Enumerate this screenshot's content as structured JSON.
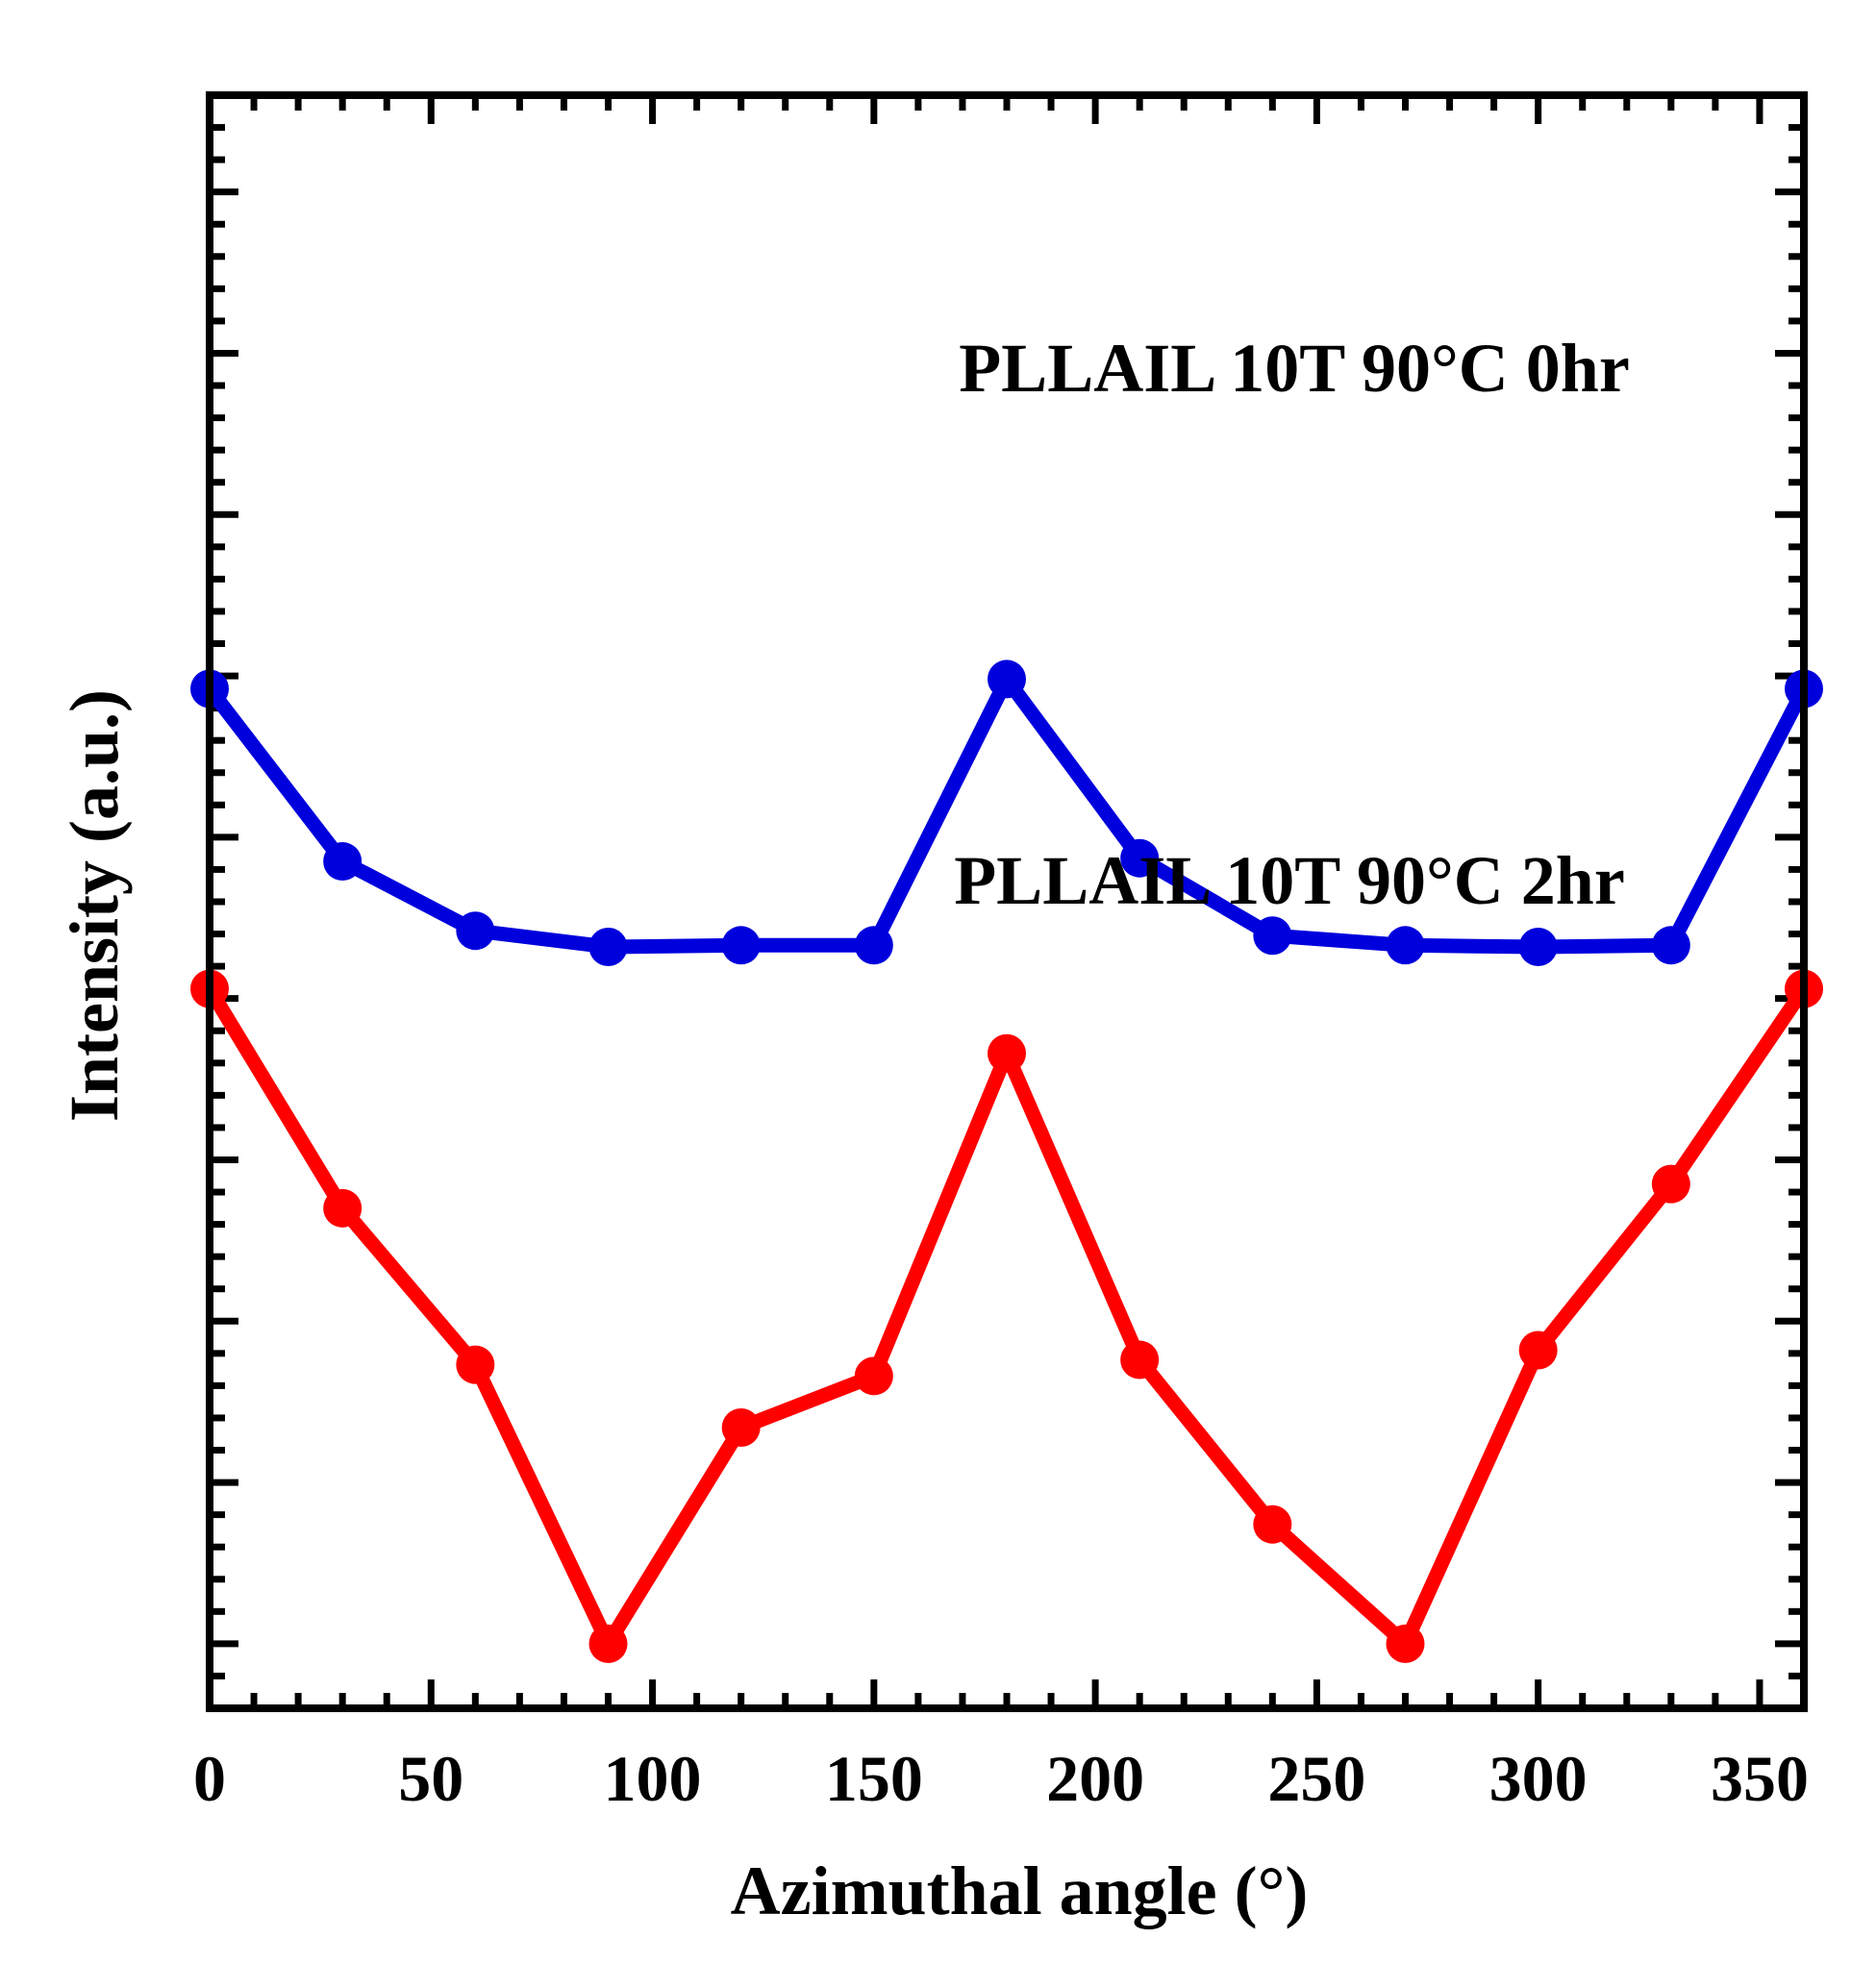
{
  "chart_data": {
    "type": "line",
    "title": "",
    "xlabel": "Azimuthal angle (°)",
    "ylabel": "Intensity (a.u.)",
    "xlim": [
      0,
      360
    ],
    "ylim": [
      0,
      100
    ],
    "x_ticks": [
      0,
      50,
      100,
      150,
      200,
      250,
      300,
      350
    ],
    "y_ticks": [
      4,
      14,
      24,
      34,
      44,
      54,
      64,
      74,
      84,
      94
    ],
    "y_tick_labels_shown": false,
    "grid": false,
    "series": [
      {
        "name": "PLLAIL 10T 90°C 0hr",
        "color": "#0000dd",
        "x": [
          0,
          30,
          60,
          90,
          120,
          150,
          180,
          210,
          240,
          270,
          300,
          330,
          360
        ],
        "y": [
          63.2,
          52.5,
          48.2,
          47.2,
          47.3,
          47.3,
          63.8,
          52.7,
          47.9,
          47.3,
          47.2,
          47.3,
          63.2
        ]
      },
      {
        "name": "PLLAIL 10T 90°C 2hr",
        "color": "#ff0000",
        "x": [
          0,
          30,
          60,
          90,
          120,
          150,
          180,
          210,
          240,
          270,
          300,
          330,
          360
        ],
        "y": [
          44.6,
          31.0,
          21.3,
          4.0,
          17.4,
          20.6,
          40.6,
          21.6,
          11.4,
          4.0,
          22.2,
          32.5,
          44.6
        ]
      }
    ]
  }
}
